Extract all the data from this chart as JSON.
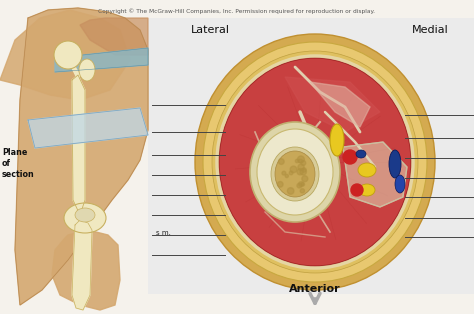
{
  "title": "Copyright © The McGraw-Hill Companies, Inc. Permission required for reproduction or display.",
  "lateral_label": "Lateral",
  "medial_label": "Medial",
  "anterior_label": "Anterior",
  "plane_label": "Plane\nof\nsection",
  "label_im": "s m.",
  "bg_color": "#f5f2ec",
  "white_panel_color": "#e8e5de",
  "outer_tan": "#d4aa5a",
  "fat_yellow": "#e8c878",
  "inner_fat": "#dfc070",
  "muscle_red": "#c84040",
  "muscle_dark": "#b83030",
  "fascia_cream": "#e8dfc8",
  "bone_outer": "#ddd5a8",
  "bone_inner": "#cfc098",
  "bone_marrow": "#c8a860",
  "line_color": "#444444",
  "vessel_red": "#cc2222",
  "vessel_blue": "#1a3a8a",
  "vessel_yellow": "#e8c820",
  "nerve_blue": "#2244aa",
  "skin_tan": "#d4a870",
  "skin_dark": "#b88850",
  "bone_cream": "#f0e8c0",
  "bone_outline": "#c8b060"
}
